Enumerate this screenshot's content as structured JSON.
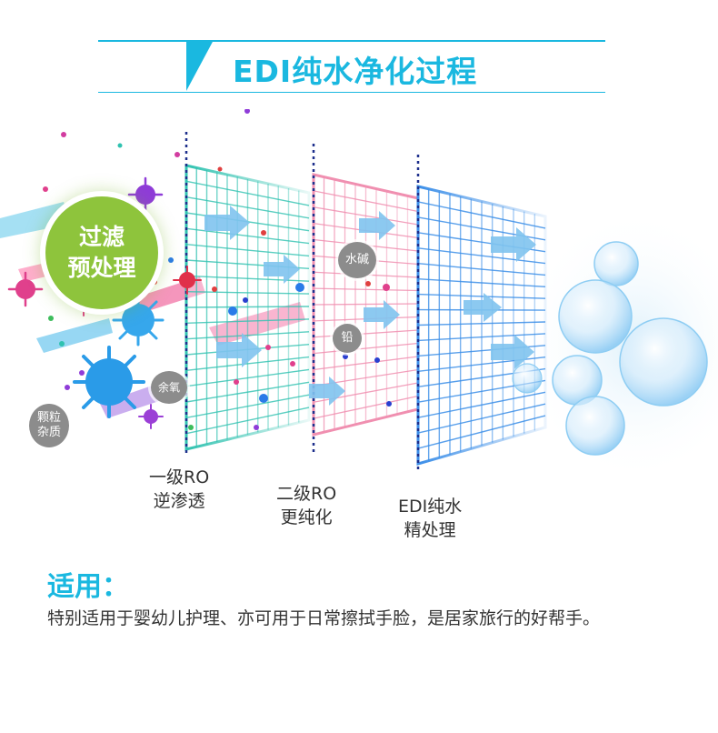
{
  "header": {
    "title": "EDI纯水净化过程",
    "accent_color": "#1ab8e0"
  },
  "pre_filter": {
    "line1": "过滤",
    "line2": "预处理",
    "color": "#8ec43c"
  },
  "impurity_tags": {
    "particles_line1": "颗粒",
    "particles_line2": "杂质",
    "residual_ozone": "余氧",
    "scale": "水碱",
    "lead": "铅"
  },
  "stages": [
    {
      "line1": "一级RO",
      "line2": "逆渗透",
      "color": "#2fc2b0"
    },
    {
      "line1": "二级RO",
      "line2": "更纯化",
      "color": "#f08fb0"
    },
    {
      "line1": "EDI纯水",
      "line2": "精处理",
      "color": "#3b8ee8"
    }
  ],
  "usage": {
    "title": "适用：",
    "text": "特别适用于婴幼儿护理、亦可用于日常擦拭手脸，是居家旅行的好帮手。"
  }
}
